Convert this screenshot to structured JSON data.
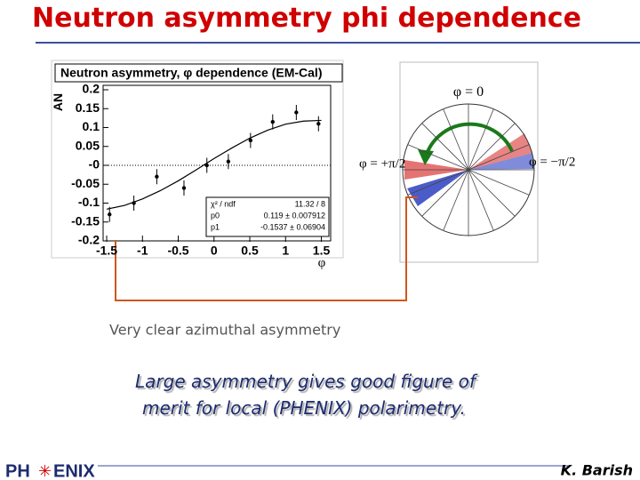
{
  "slide": {
    "title": "Neutron asymmetry phi dependence",
    "caption": "Very clear azimuthal asymmetry",
    "conclusion": [
      "Large asymmetry gives good figure of",
      "merit for local (PHENIX) polarimetry."
    ],
    "logo": [
      "PH",
      "ENIX"
    ],
    "author": "K. Barish"
  },
  "diagram": {
    "labels": [
      "φ = 0",
      "φ = +π/2",
      "φ = −π/2"
    ]
  },
  "chart_data": {
    "type": "scatter",
    "title": "Neutron asymmetry, φ dependence (EM-Cal)",
    "xlabel": "φ",
    "ylabel": "AN",
    "x": [
      -1.46,
      -1.12,
      -0.8,
      -0.42,
      -0.1,
      0.2,
      0.51,
      0.82,
      1.15,
      1.46
    ],
    "values": [
      -0.13,
      -0.1,
      -0.03,
      -0.06,
      0.0,
      0.01,
      0.066,
      0.115,
      0.14,
      0.11
    ],
    "errors": [
      0.02,
      0.02,
      0.02,
      0.02,
      0.02,
      0.02,
      0.02,
      0.02,
      0.02,
      0.02
    ],
    "fit": {
      "x": [
        -1.5,
        -1.25,
        -1,
        -0.75,
        -0.5,
        -0.25,
        0,
        0.25,
        0.5,
        0.75,
        1,
        1.25,
        1.5
      ],
      "values": [
        -0.116,
        -0.106,
        -0.089,
        -0.067,
        -0.041,
        -0.012,
        0.018,
        0.046,
        0.072,
        0.093,
        0.109,
        0.117,
        0.119
      ]
    },
    "stats": [
      [
        "χ² / ndf",
        "11.32 / 8"
      ],
      [
        "p0",
        "0.119 ± 0.007912"
      ],
      [
        "p1",
        "-0.1537 ± 0.06904"
      ]
    ],
    "color": "#000000",
    "xlim": [
      -1.55,
      1.63
    ],
    "ylim": [
      -0.2,
      0.2
    ],
    "xticks": [
      -1.5,
      -1,
      -0.5,
      0,
      0.5,
      1,
      1.5
    ],
    "yticks": [
      0.2,
      0.15,
      0.1,
      0.05,
      {
        "value": 0,
        "label": "-0"
      },
      -0.05,
      -0.1,
      -0.15,
      -0.2
    ]
  }
}
